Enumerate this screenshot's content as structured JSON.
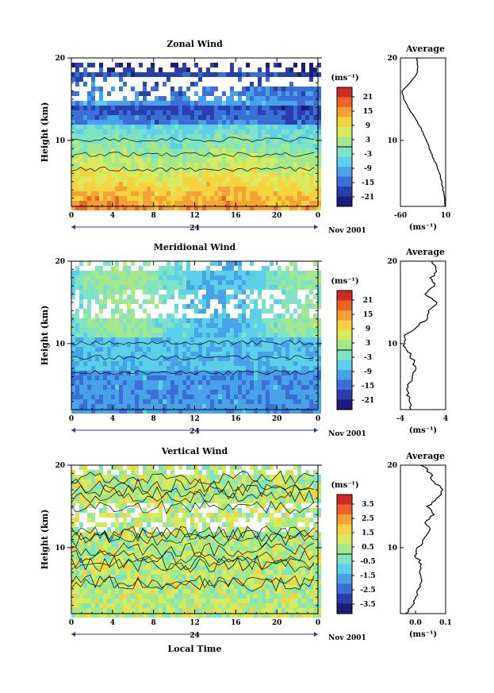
{
  "common": {
    "ylabel": "Height (km)",
    "xlabel": "Local Time",
    "date_label": "Nov 2001",
    "day_label": "24",
    "unit": "(ms⁻¹)",
    "xticks": [
      "0",
      "4",
      "8",
      "12",
      "16",
      "20",
      "0"
    ],
    "yticks": [
      "20",
      "10"
    ],
    "avg_title": "Average"
  },
  "panels": [
    {
      "title": "Zonal Wind",
      "cbar_ticks": [
        "21",
        "15",
        "9",
        "3",
        "-3",
        "-9",
        "-15",
        "-21"
      ],
      "avg_xticks": [
        "-60",
        "10"
      ],
      "show_xlabel": false
    },
    {
      "title": "Meridional Wind",
      "cbar_ticks": [
        "21",
        "15",
        "9",
        "3",
        "-3",
        "-9",
        "-15",
        "-21"
      ],
      "avg_xticks": [
        "-4",
        "4"
      ],
      "show_xlabel": false
    },
    {
      "title": "Vertical Wind",
      "cbar_ticks": [
        "3.5",
        "2.5",
        "1.5",
        "0.5",
        "-0.5",
        "-1.5",
        "-2.5",
        "-3.5"
      ],
      "avg_xticks": [
        "0.0",
        "0.1"
      ],
      "show_xlabel": true
    }
  ],
  "chart_data": [
    {
      "type": "heatmap",
      "title": "Zonal Wind",
      "xlabel": "",
      "ylabel": "Height (km)",
      "x_range_hours": [
        0,
        24
      ],
      "y_range_km": [
        2,
        20
      ],
      "colorbar_range": [
        -24,
        24
      ],
      "profile": {
        "title": "Average",
        "xlim": [
          -60,
          10
        ],
        "height_km": [
          2,
          3,
          4,
          5,
          6,
          7,
          8,
          9,
          10,
          11,
          12,
          13,
          14,
          15,
          16,
          17,
          18,
          19,
          20
        ],
        "value": [
          9,
          8,
          6,
          4,
          1,
          -4,
          -10,
          -15,
          -20,
          -25,
          -32,
          -40,
          -48,
          -55,
          -58,
          -45,
          -35,
          -33,
          -35
        ]
      }
    },
    {
      "type": "heatmap",
      "title": "Meridional Wind",
      "xlabel": "",
      "ylabel": "Height (km)",
      "x_range_hours": [
        0,
        24
      ],
      "y_range_km": [
        2,
        20
      ],
      "colorbar_range": [
        -24,
        24
      ],
      "profile": {
        "title": "Average",
        "xlim": [
          -4,
          4
        ],
        "height_km": [
          2,
          3,
          4,
          5,
          6,
          7,
          8,
          9,
          10,
          11,
          12,
          13,
          14,
          15,
          16,
          17,
          18,
          19,
          20
        ],
        "value": [
          -2,
          -2.5,
          -2.7,
          -2.5,
          -2,
          -1.5,
          -1.8,
          -2.5,
          -3.5,
          -3,
          -1,
          0.5,
          1.2,
          2.5,
          0.5,
          2,
          1.5,
          2.5,
          1.5
        ]
      }
    },
    {
      "type": "heatmap",
      "title": "Vertical Wind",
      "xlabel": "Local Time",
      "ylabel": "Height (km)",
      "x_range_hours": [
        0,
        24
      ],
      "y_range_km": [
        2,
        20
      ],
      "colorbar_range": [
        -4,
        4
      ],
      "profile": {
        "title": "Average",
        "xlim": [
          -0.05,
          0.1
        ],
        "height_km": [
          2,
          3,
          4,
          5,
          6,
          7,
          8,
          9,
          10,
          11,
          12,
          13,
          14,
          15,
          16,
          17,
          18,
          19,
          20
        ],
        "value": [
          -0.03,
          -0.01,
          0.0,
          0.01,
          0.02,
          0.01,
          0.02,
          0.0,
          0.01,
          0.03,
          0.05,
          0.03,
          0.06,
          0.04,
          0.07,
          0.09,
          0.06,
          0.05,
          0.02
        ]
      }
    }
  ]
}
